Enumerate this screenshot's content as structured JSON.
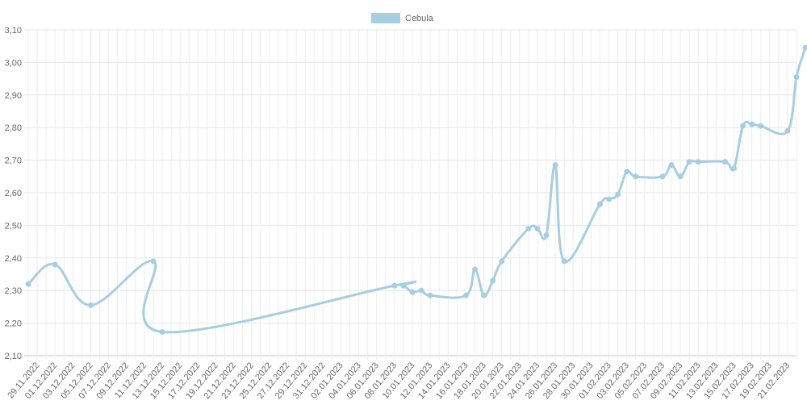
{
  "chart_data": {
    "type": "line",
    "title": "",
    "xlabel": "",
    "ylabel": "",
    "ylim": [
      2.1,
      3.1
    ],
    "y_ticks": [
      "2,10",
      "2,20",
      "2,30",
      "2,40",
      "2,50",
      "2,60",
      "2,70",
      "2,80",
      "2,90",
      "3,00",
      "3,10"
    ],
    "x_range": [
      "28.11.2022",
      "22.02.2023"
    ],
    "x_tick_labels": [
      "29.11.2022",
      "01.12.2022",
      "03.12.2022",
      "05.12.2022",
      "07.12.2022",
      "09.12.2022",
      "11.12.2022",
      "13.12.2022",
      "15.12.2022",
      "17.12.2022",
      "19.12.2022",
      "21.12.2022",
      "23.12.2022",
      "25.12.2022",
      "27.12.2022",
      "29.12.2022",
      "31.12.2022",
      "02.01.2023",
      "04.01.2023",
      "06.01.2023",
      "08.01.2023",
      "10.01.2023",
      "12.01.2023",
      "14.01.2023",
      "16.01.2023",
      "18.01.2023",
      "20.01.2023",
      "22.01.2023",
      "24.01.2023",
      "26.01.2023",
      "28.01.2023",
      "30.01.2023",
      "01.02.2023",
      "03.02.2023",
      "05.02.2023",
      "07.02.2023",
      "09.02.2023",
      "11.02.2023",
      "13.02.2023",
      "15.02.2023",
      "17.02.2023",
      "19.02.2023",
      "21.02.2023"
    ],
    "grid": true,
    "legend_position": "top-center",
    "series": [
      {
        "name": "Cebula",
        "color": "#a6cee3",
        "points": [
          {
            "x": "28.11.2022",
            "y": 2.32
          },
          {
            "x": "01.12.2022",
            "y": 2.38
          },
          {
            "x": "05.12.2022",
            "y": 2.255
          },
          {
            "x": "12.12.2022",
            "y": 2.39
          },
          {
            "x": "13.12.2022",
            "y": 2.173
          },
          {
            "x": "08.01.2023",
            "y": 2.315
          },
          {
            "x": "09.01.2023",
            "y": 2.315
          },
          {
            "x": "10.01.2023",
            "y": 2.295
          },
          {
            "x": "11.01.2023",
            "y": 2.3
          },
          {
            "x": "12.01.2023",
            "y": 2.285
          },
          {
            "x": "16.01.2023",
            "y": 2.285
          },
          {
            "x": "17.01.2023",
            "y": 2.365
          },
          {
            "x": "18.01.2023",
            "y": 2.285
          },
          {
            "x": "19.01.2023",
            "y": 2.33
          },
          {
            "x": "20.01.2023",
            "y": 2.39
          },
          {
            "x": "23.01.2023",
            "y": 2.49
          },
          {
            "x": "24.01.2023",
            "y": 2.49
          },
          {
            "x": "25.01.2023",
            "y": 2.47
          },
          {
            "x": "26.01.2023",
            "y": 2.685
          },
          {
            "x": "27.01.2023",
            "y": 2.39
          },
          {
            "x": "31.01.2023",
            "y": 2.565
          },
          {
            "x": "01.02.2023",
            "y": 2.58
          },
          {
            "x": "02.02.2023",
            "y": 2.595
          },
          {
            "x": "03.02.2023",
            "y": 2.665
          },
          {
            "x": "04.02.2023",
            "y": 2.65
          },
          {
            "x": "07.02.2023",
            "y": 2.65
          },
          {
            "x": "08.02.2023",
            "y": 2.685
          },
          {
            "x": "09.02.2023",
            "y": 2.65
          },
          {
            "x": "10.02.2023",
            "y": 2.695
          },
          {
            "x": "11.02.2023",
            "y": 2.695
          },
          {
            "x": "14.02.2023",
            "y": 2.695
          },
          {
            "x": "15.02.2023",
            "y": 2.675
          },
          {
            "x": "16.02.2023",
            "y": 2.805
          },
          {
            "x": "17.02.2023",
            "y": 2.81
          },
          {
            "x": "18.02.2023",
            "y": 2.805
          },
          {
            "x": "21.02.2023",
            "y": 2.79
          },
          {
            "x": "22.02.2023",
            "y": 2.955
          },
          {
            "x": "23.02.2023",
            "y": 3.045
          }
        ]
      }
    ]
  }
}
